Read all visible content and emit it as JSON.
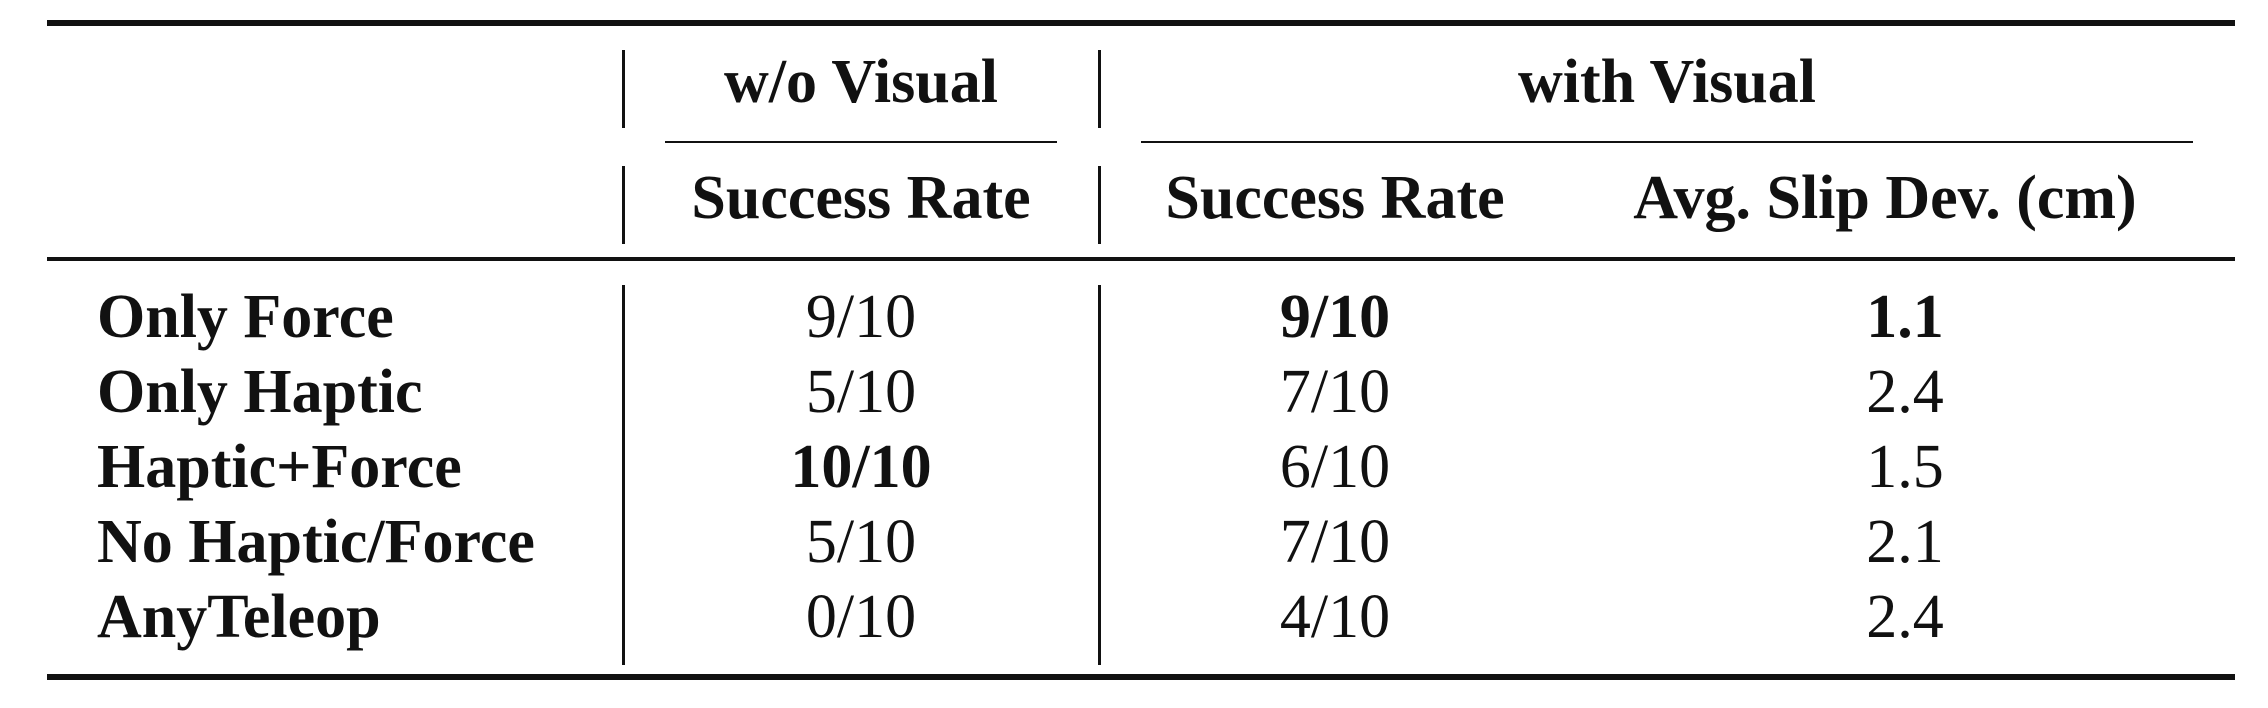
{
  "table": {
    "group_headers": {
      "without_visual": "w/o Visual",
      "with_visual": "with Visual"
    },
    "column_headers": {
      "wo_success_rate": "Success Rate",
      "with_success_rate": "Success Rate",
      "with_avg_slip_dev": "Avg. Slip Dev. (cm)"
    },
    "rows": [
      {
        "label": "Only Force",
        "wo_success": "9/10",
        "with_success": "9/10",
        "slip_dev": "1.1"
      },
      {
        "label": "Only Haptic",
        "wo_success": "5/10",
        "with_success": "7/10",
        "slip_dev": "2.4"
      },
      {
        "label": "Haptic+Force",
        "wo_success": "10/10",
        "with_success": "6/10",
        "slip_dev": "1.5"
      },
      {
        "label": "No Haptic/Force",
        "wo_success": "5/10",
        "with_success": "7/10",
        "slip_dev": "2.1"
      },
      {
        "label": "AnyTeleop",
        "wo_success": "0/10",
        "with_success": "4/10",
        "slip_dev": "2.4"
      }
    ]
  }
}
